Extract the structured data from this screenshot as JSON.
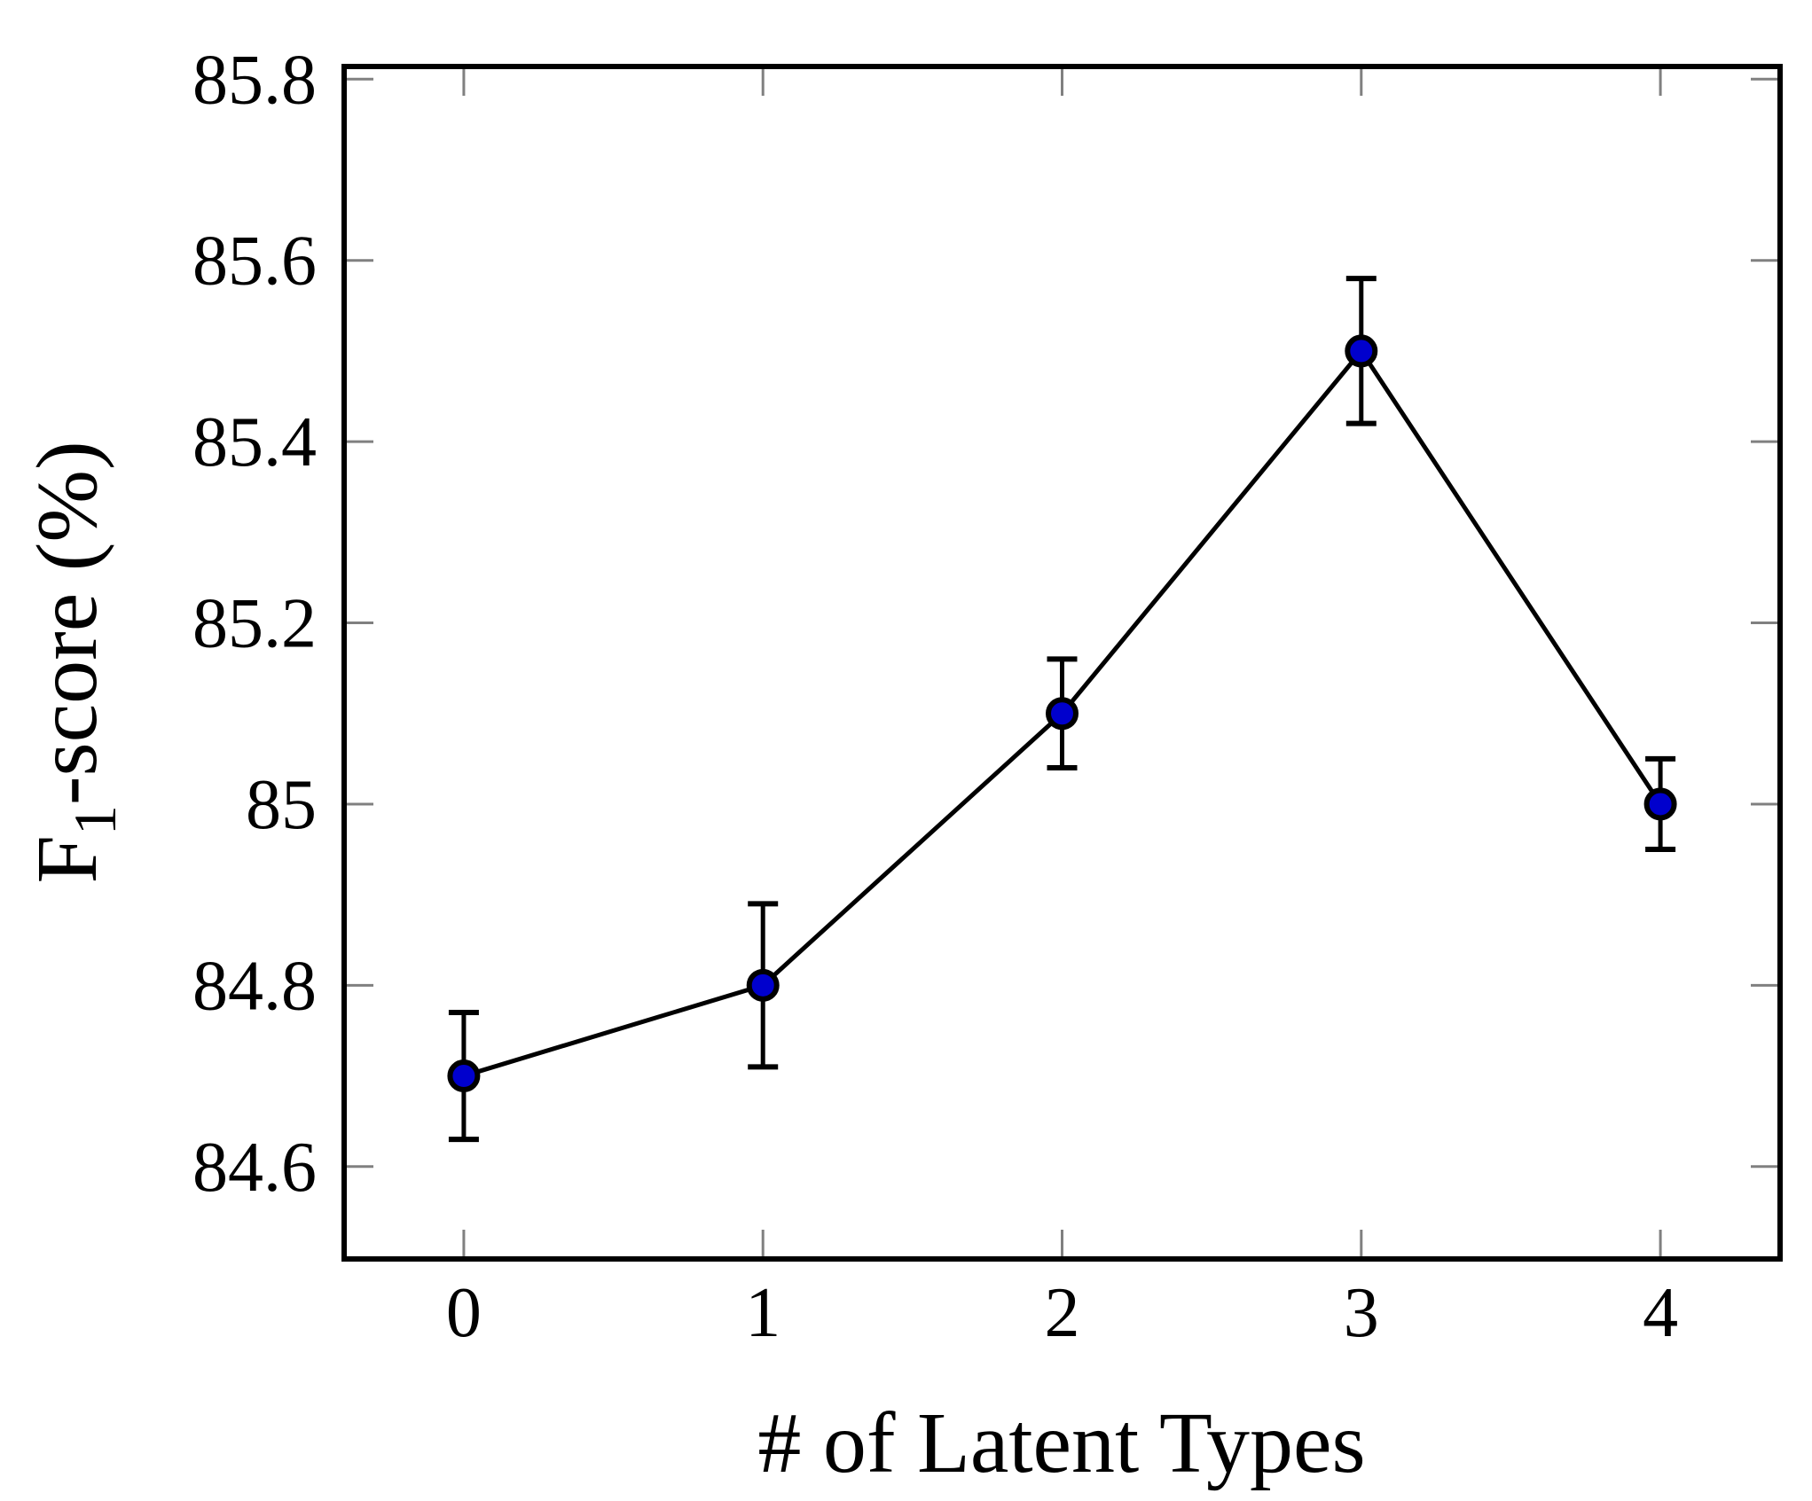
{
  "figure": {
    "background": "#ffffff"
  },
  "chart_data": {
    "type": "line",
    "title": "",
    "xlabel": "# of Latent Types",
    "ylabel": "F1-score (%)",
    "ylabel_parts": {
      "prefix": "F",
      "subscript": "1",
      "suffix": "-score (%)"
    },
    "x": [
      0,
      1,
      2,
      3,
      4
    ],
    "series": [
      {
        "name": "F1-score",
        "values": [
          84.7,
          84.8,
          85.1,
          85.5,
          85.0
        ],
        "errors": [
          0.07,
          0.09,
          0.06,
          0.08,
          0.05
        ],
        "line_color": "#000000",
        "marker": "circle",
        "marker_fill": "#0000CD",
        "marker_edge": "#000000"
      }
    ],
    "xlim": [
      -0.4,
      4.4
    ],
    "ylim": [
      84.498,
      85.814
    ],
    "xticks": [
      0,
      1,
      2,
      3,
      4
    ],
    "xtick_labels": [
      "0",
      "1",
      "2",
      "3",
      "4"
    ],
    "yticks": [
      84.6,
      84.8,
      85.0,
      85.2,
      85.4,
      85.6,
      85.8
    ],
    "ytick_labels": [
      "84.6",
      "84.8",
      "85",
      "85.2",
      "85.4",
      "85.6",
      "85.8"
    ],
    "grid": false,
    "legend": null,
    "tick_style": "inward-mirrored",
    "tick_color": "#808080",
    "frame_color": "#000000",
    "background_color": "#ffffff"
  }
}
